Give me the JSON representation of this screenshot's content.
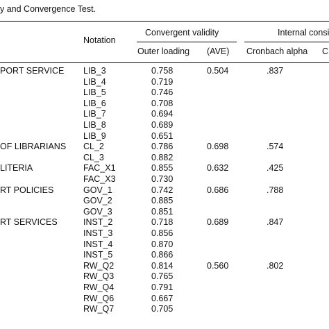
{
  "caption": "y and Convergence Test.",
  "headers": {
    "notation": "Notation",
    "convergent_validity": "Convergent validity",
    "internal_consistency": "Internal consi",
    "outer_loading": "Outer loading",
    "ave": "(AVE)",
    "cronbach_alpha": "Cronbach alpha",
    "cut_col": "C"
  },
  "rows": [
    {
      "construct": "PORT SERVICE",
      "notation": "LIB_3",
      "loading": "0.758",
      "ave": "0.504",
      "alpha": ".837"
    },
    {
      "construct": "",
      "notation": "LIB_4",
      "loading": "0.719",
      "ave": "",
      "alpha": ""
    },
    {
      "construct": "",
      "notation": "LIB_5",
      "loading": "0.746",
      "ave": "",
      "alpha": ""
    },
    {
      "construct": "",
      "notation": "LIB_6",
      "loading": "0.708",
      "ave": "",
      "alpha": ""
    },
    {
      "construct": "",
      "notation": "LIB_7",
      "loading": "0.694",
      "ave": "",
      "alpha": ""
    },
    {
      "construct": "",
      "notation": "LIB_8",
      "loading": "0.689",
      "ave": "",
      "alpha": ""
    },
    {
      "construct": "",
      "notation": "LIB_9",
      "loading": "0.651",
      "ave": "",
      "alpha": ""
    },
    {
      "construct": "OF LIBRARIANS",
      "notation": "CL_2",
      "loading": "0.786",
      "ave": "0.698",
      "alpha": ".574"
    },
    {
      "construct": "",
      "notation": "CL_3",
      "loading": "0.882",
      "ave": "",
      "alpha": ""
    },
    {
      "construct": "LITERIA",
      "notation": "FAC_X1",
      "loading": "0.855",
      "ave": "0.632",
      "alpha": ".425"
    },
    {
      "construct": "",
      "notation": "FAC_X3",
      "loading": "0.730",
      "ave": "",
      "alpha": ""
    },
    {
      "construct": "RT POLICIES",
      "notation": "GOV_1",
      "loading": "0.742",
      "ave": "0.686",
      "alpha": ".788"
    },
    {
      "construct": "",
      "notation": "GOV_2",
      "loading": "0.885",
      "ave": "",
      "alpha": ""
    },
    {
      "construct": "",
      "notation": "GOV_3",
      "loading": "0.851",
      "ave": "",
      "alpha": ""
    },
    {
      "construct": "RT SERVICES",
      "notation": "INST_2",
      "loading": "0.718",
      "ave": "0.689",
      "alpha": ".847"
    },
    {
      "construct": "",
      "notation": "INST_3",
      "loading": "0.856",
      "ave": "",
      "alpha": ""
    },
    {
      "construct": "",
      "notation": "INST_4",
      "loading": "0.870",
      "ave": "",
      "alpha": ""
    },
    {
      "construct": "",
      "notation": "INST_5",
      "loading": "0.866",
      "ave": "",
      "alpha": ""
    },
    {
      "construct": "",
      "notation": "RW_Q2",
      "loading": "0.814",
      "ave": "0.560",
      "alpha": ".802"
    },
    {
      "construct": "",
      "notation": "RW_Q3",
      "loading": "0.765",
      "ave": "",
      "alpha": ""
    },
    {
      "construct": "",
      "notation": "RW_Q4",
      "loading": "0.791",
      "ave": "",
      "alpha": ""
    },
    {
      "construct": "",
      "notation": "RW_Q6",
      "loading": "0.667",
      "ave": "",
      "alpha": ""
    },
    {
      "construct": "",
      "notation": "RW_Q7",
      "loading": "0.705",
      "ave": "",
      "alpha": ""
    }
  ]
}
